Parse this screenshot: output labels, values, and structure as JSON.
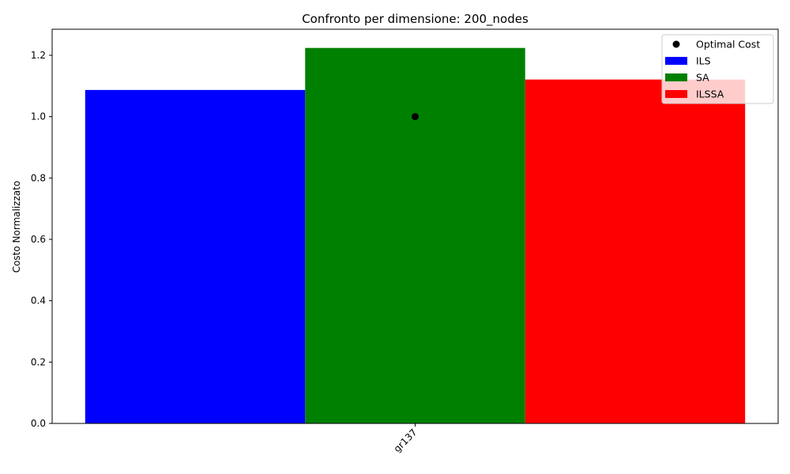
{
  "chart_data": {
    "type": "bar",
    "title": "Confronto per dimensione: 200_nodes",
    "xlabel": "",
    "ylabel": "Costo Normalizzato",
    "categories": [
      "gr137"
    ],
    "series": [
      {
        "name": "ILS",
        "values": [
          1.087
        ],
        "color": "#0000ff"
      },
      {
        "name": "SA",
        "values": [
          1.224
        ],
        "color": "#008000"
      },
      {
        "name": "ILSSA",
        "values": [
          1.121
        ],
        "color": "#ff0000"
      }
    ],
    "optimal": {
      "name": "Optimal Cost",
      "values": [
        1.0
      ],
      "color": "#000000"
    },
    "ylim": [
      0,
      1.285
    ],
    "yticks": [
      "0.0",
      "0.2",
      "0.4",
      "0.6",
      "0.8",
      "1.0",
      "1.2"
    ],
    "legend_position": "top-right",
    "grid": false
  }
}
